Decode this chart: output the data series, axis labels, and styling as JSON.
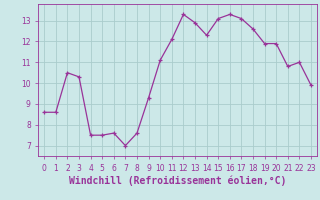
{
  "hours": [
    0,
    1,
    2,
    3,
    4,
    5,
    6,
    7,
    8,
    9,
    10,
    11,
    12,
    13,
    14,
    15,
    16,
    17,
    18,
    19,
    20,
    21,
    22,
    23
  ],
  "values": [
    8.6,
    8.6,
    10.5,
    10.3,
    7.5,
    7.5,
    7.6,
    7.0,
    7.6,
    9.3,
    11.1,
    12.1,
    13.3,
    12.9,
    12.3,
    13.1,
    13.3,
    13.1,
    12.6,
    11.9,
    11.9,
    10.8,
    11.0,
    9.9
  ],
  "line_color": "#993399",
  "marker": "+",
  "background_color": "#cce8e8",
  "grid_color": "#aacccc",
  "xlabel": "Windchill (Refroidissement éolien,°C)",
  "xlabel_color": "#993399",
  "ylim": [
    6.5,
    13.8
  ],
  "xlim": [
    -0.5,
    23.5
  ],
  "yticks": [
    7,
    8,
    9,
    10,
    11,
    12,
    13
  ],
  "xtick_labels": [
    "0",
    "1",
    "2",
    "3",
    "4",
    "5",
    "6",
    "7",
    "8",
    "9",
    "10",
    "11",
    "12",
    "13",
    "14",
    "15",
    "16",
    "17",
    "18",
    "19",
    "20",
    "21",
    "22",
    "23"
  ],
  "tick_color": "#993399",
  "tick_fontsize": 5.5,
  "xlabel_fontsize": 7.0,
  "linewidth": 0.9,
  "markersize": 3.5
}
